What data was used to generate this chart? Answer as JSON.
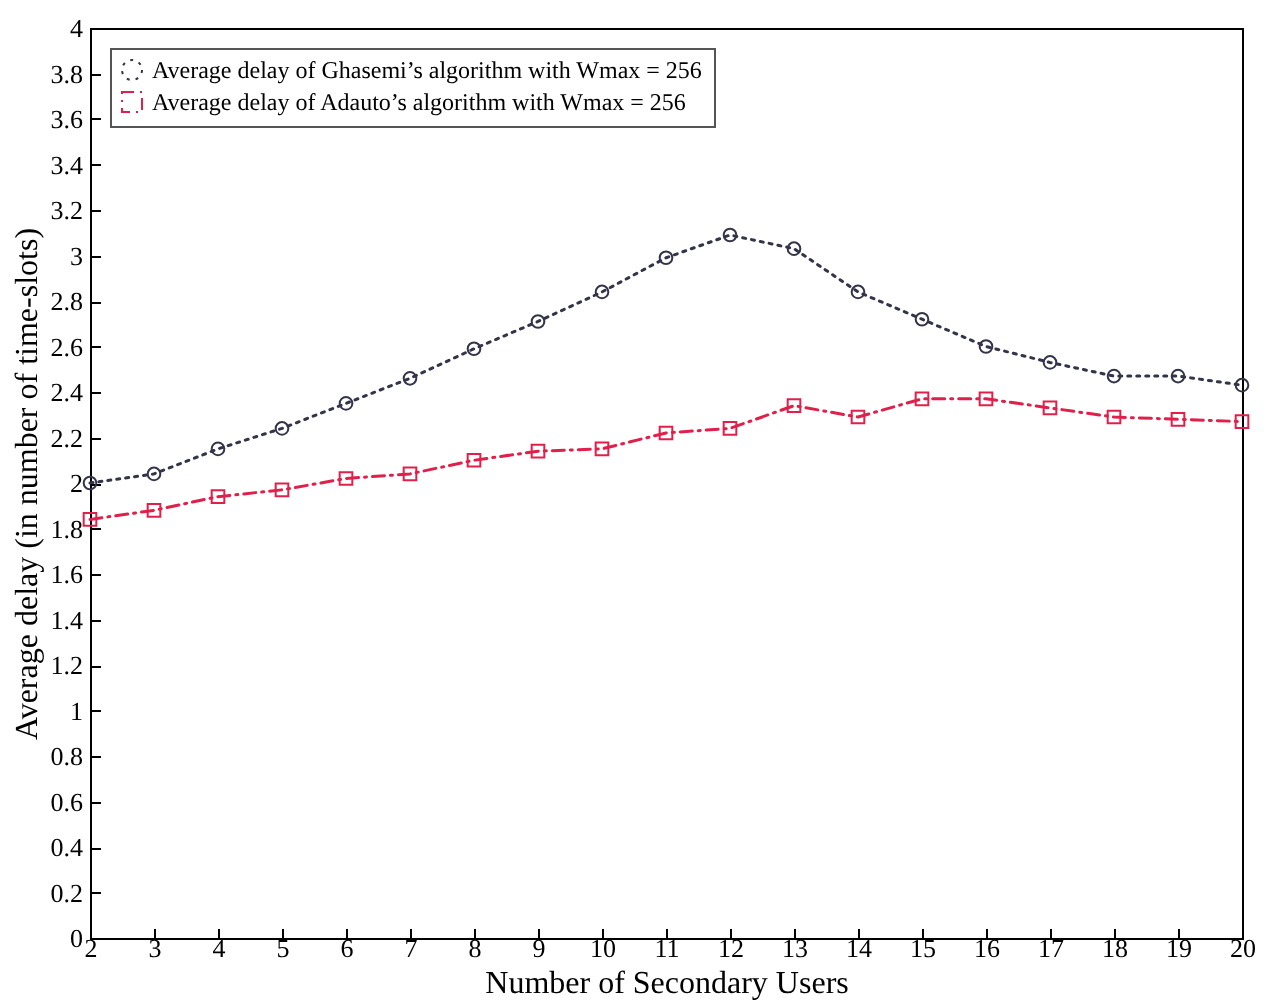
{
  "chart_data": {
    "type": "line",
    "xlabel": "Number of Secondary Users",
    "ylabel": "Average delay (in number of time-slots)",
    "x": [
      2,
      3,
      4,
      5,
      6,
      7,
      8,
      9,
      10,
      11,
      12,
      13,
      14,
      15,
      16,
      17,
      18,
      19,
      20
    ],
    "series": [
      {
        "name": "Average delay of Ghasemi’s algorithm with Wmax = 256",
        "color": "#33334a",
        "marker": "circle",
        "line_style": "dotted",
        "values": [
          2.0,
          2.04,
          2.15,
          2.24,
          2.35,
          2.46,
          2.59,
          2.71,
          2.84,
          2.99,
          3.09,
          3.03,
          2.84,
          2.72,
          2.6,
          2.53,
          2.47,
          2.47,
          2.43
        ]
      },
      {
        "name": "Average delay of Adauto’s algorithm with Wmax = 256",
        "color": "#e0204a",
        "marker": "square",
        "line_style": "dashed",
        "values": [
          1.84,
          1.88,
          1.94,
          1.97,
          2.02,
          2.04,
          2.1,
          2.14,
          2.15,
          2.22,
          2.24,
          2.34,
          2.29,
          2.37,
          2.37,
          2.33,
          2.29,
          2.28,
          2.27
        ]
      }
    ],
    "xlim": [
      2,
      20
    ],
    "xticks": [
      2,
      3,
      4,
      5,
      6,
      7,
      8,
      9,
      10,
      11,
      12,
      13,
      14,
      15,
      16,
      17,
      18,
      19,
      20
    ],
    "ylim": [
      0,
      4
    ],
    "yticks": [
      0,
      0.2,
      0.4,
      0.6,
      0.8,
      1,
      1.2,
      1.4,
      1.6,
      1.8,
      2,
      2.2,
      2.4,
      2.6,
      2.8,
      3,
      3.2,
      3.4,
      3.6,
      3.8,
      4
    ],
    "grid": false,
    "legend": "top left"
  }
}
